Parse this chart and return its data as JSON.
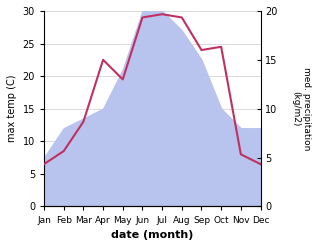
{
  "months": [
    "Jan",
    "Feb",
    "Mar",
    "Apr",
    "May",
    "Jun",
    "Jul",
    "Aug",
    "Sep",
    "Oct",
    "Nov",
    "Dec"
  ],
  "temperature": [
    6.5,
    8.5,
    13.0,
    22.5,
    19.5,
    29.0,
    29.5,
    29.0,
    24.0,
    24.5,
    8.0,
    6.5
  ],
  "precipitation": [
    5.0,
    8.0,
    9.0,
    10.0,
    14.0,
    20.0,
    20.0,
    18.0,
    15.0,
    10.0,
    8.0,
    8.0
  ],
  "temp_color": "#c03060",
  "precip_fill_color": "#b8c4ee",
  "temp_ylim": [
    0,
    30
  ],
  "precip_ylim": [
    0,
    20
  ],
  "xlabel": "date (month)",
  "ylabel_left": "max temp (C)",
  "ylabel_right": "med. precipitation\n(kg/m2)",
  "bg_color": "#ffffff",
  "grid_color": "#cccccc",
  "temp_yticks": [
    0,
    5,
    10,
    15,
    20,
    25,
    30
  ],
  "precip_yticks": [
    0,
    5,
    10,
    15,
    20
  ]
}
